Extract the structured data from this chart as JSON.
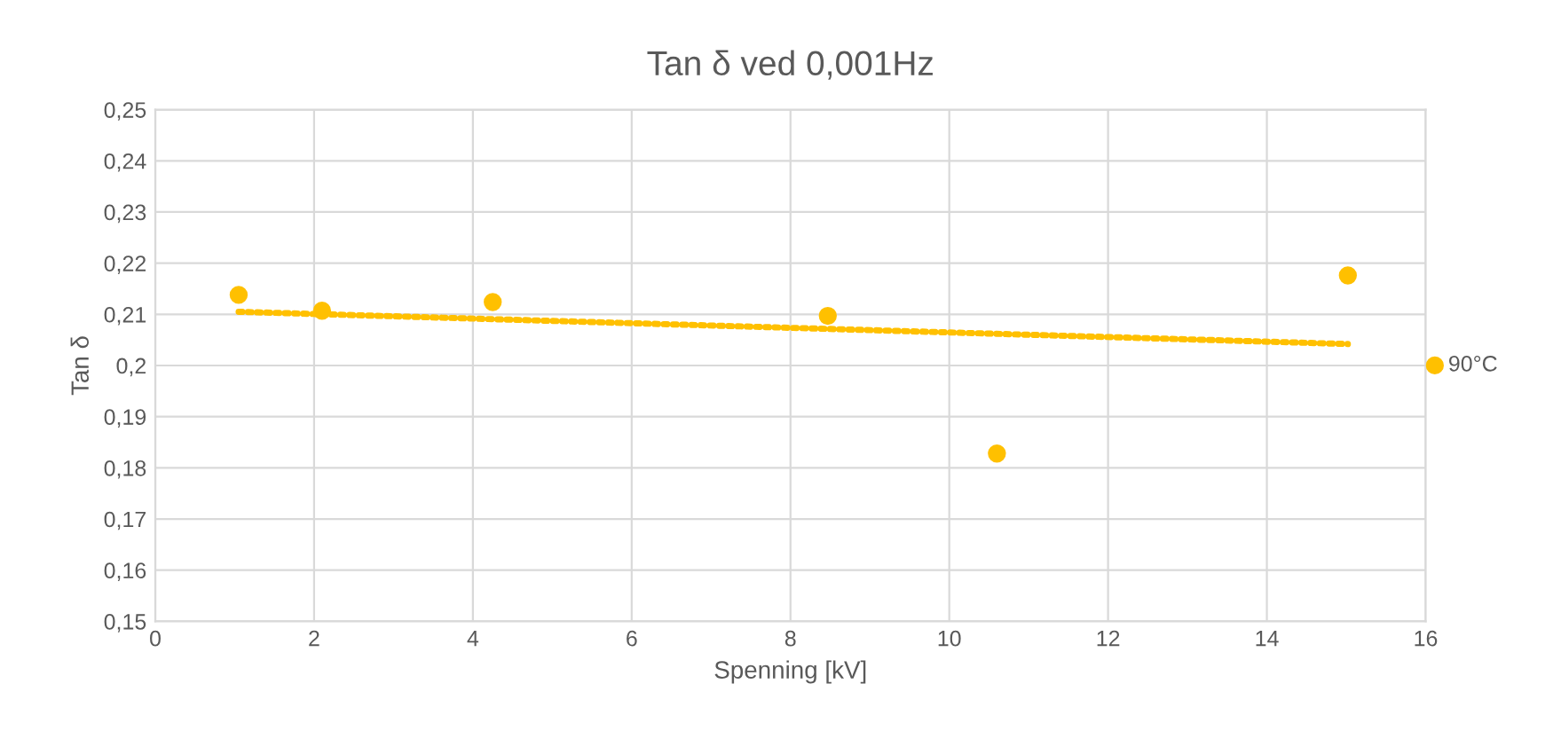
{
  "chart_data": {
    "type": "scatter",
    "title": "Tan δ ved 0,001Hz",
    "xlabel": "Spenning [kV]",
    "ylabel": "Tan δ",
    "series": [
      {
        "name": "90°C",
        "color": "#ffc000",
        "marker": "circle",
        "x": [
          1.05,
          2.1,
          4.25,
          8.47,
          10.6,
          15.02
        ],
        "values": [
          0.2138,
          0.2107,
          0.2124,
          0.2097,
          0.1828,
          0.2176
        ]
      },
      {
        "type": "line",
        "color": "#ffc000",
        "line_style": "dotted",
        "marker": "none",
        "x": [
          1.05,
          15.02
        ],
        "values": [
          0.2105,
          0.2042
        ]
      }
    ],
    "xlim": [
      0,
      16
    ],
    "xticks": [
      0,
      2,
      4,
      6,
      8,
      10,
      12,
      14,
      16
    ],
    "ylim": [
      0.15,
      0.25
    ],
    "yticks": [
      {
        "value": 0.15,
        "label": "0,15"
      },
      {
        "value": 0.16,
        "label": "0,16"
      },
      {
        "value": 0.17,
        "label": "0,17"
      },
      {
        "value": 0.18,
        "label": "0,18"
      },
      {
        "value": 0.19,
        "label": "0,19"
      },
      {
        "value": 0.2,
        "label": "0,2"
      },
      {
        "value": 0.21,
        "label": "0,21"
      },
      {
        "value": 0.22,
        "label": "0,22"
      },
      {
        "value": 0.23,
        "label": "0,23"
      },
      {
        "value": 0.24,
        "label": "0,24"
      },
      {
        "value": 0.25,
        "label": "0,25"
      }
    ],
    "grid": true,
    "legend": "right"
  }
}
